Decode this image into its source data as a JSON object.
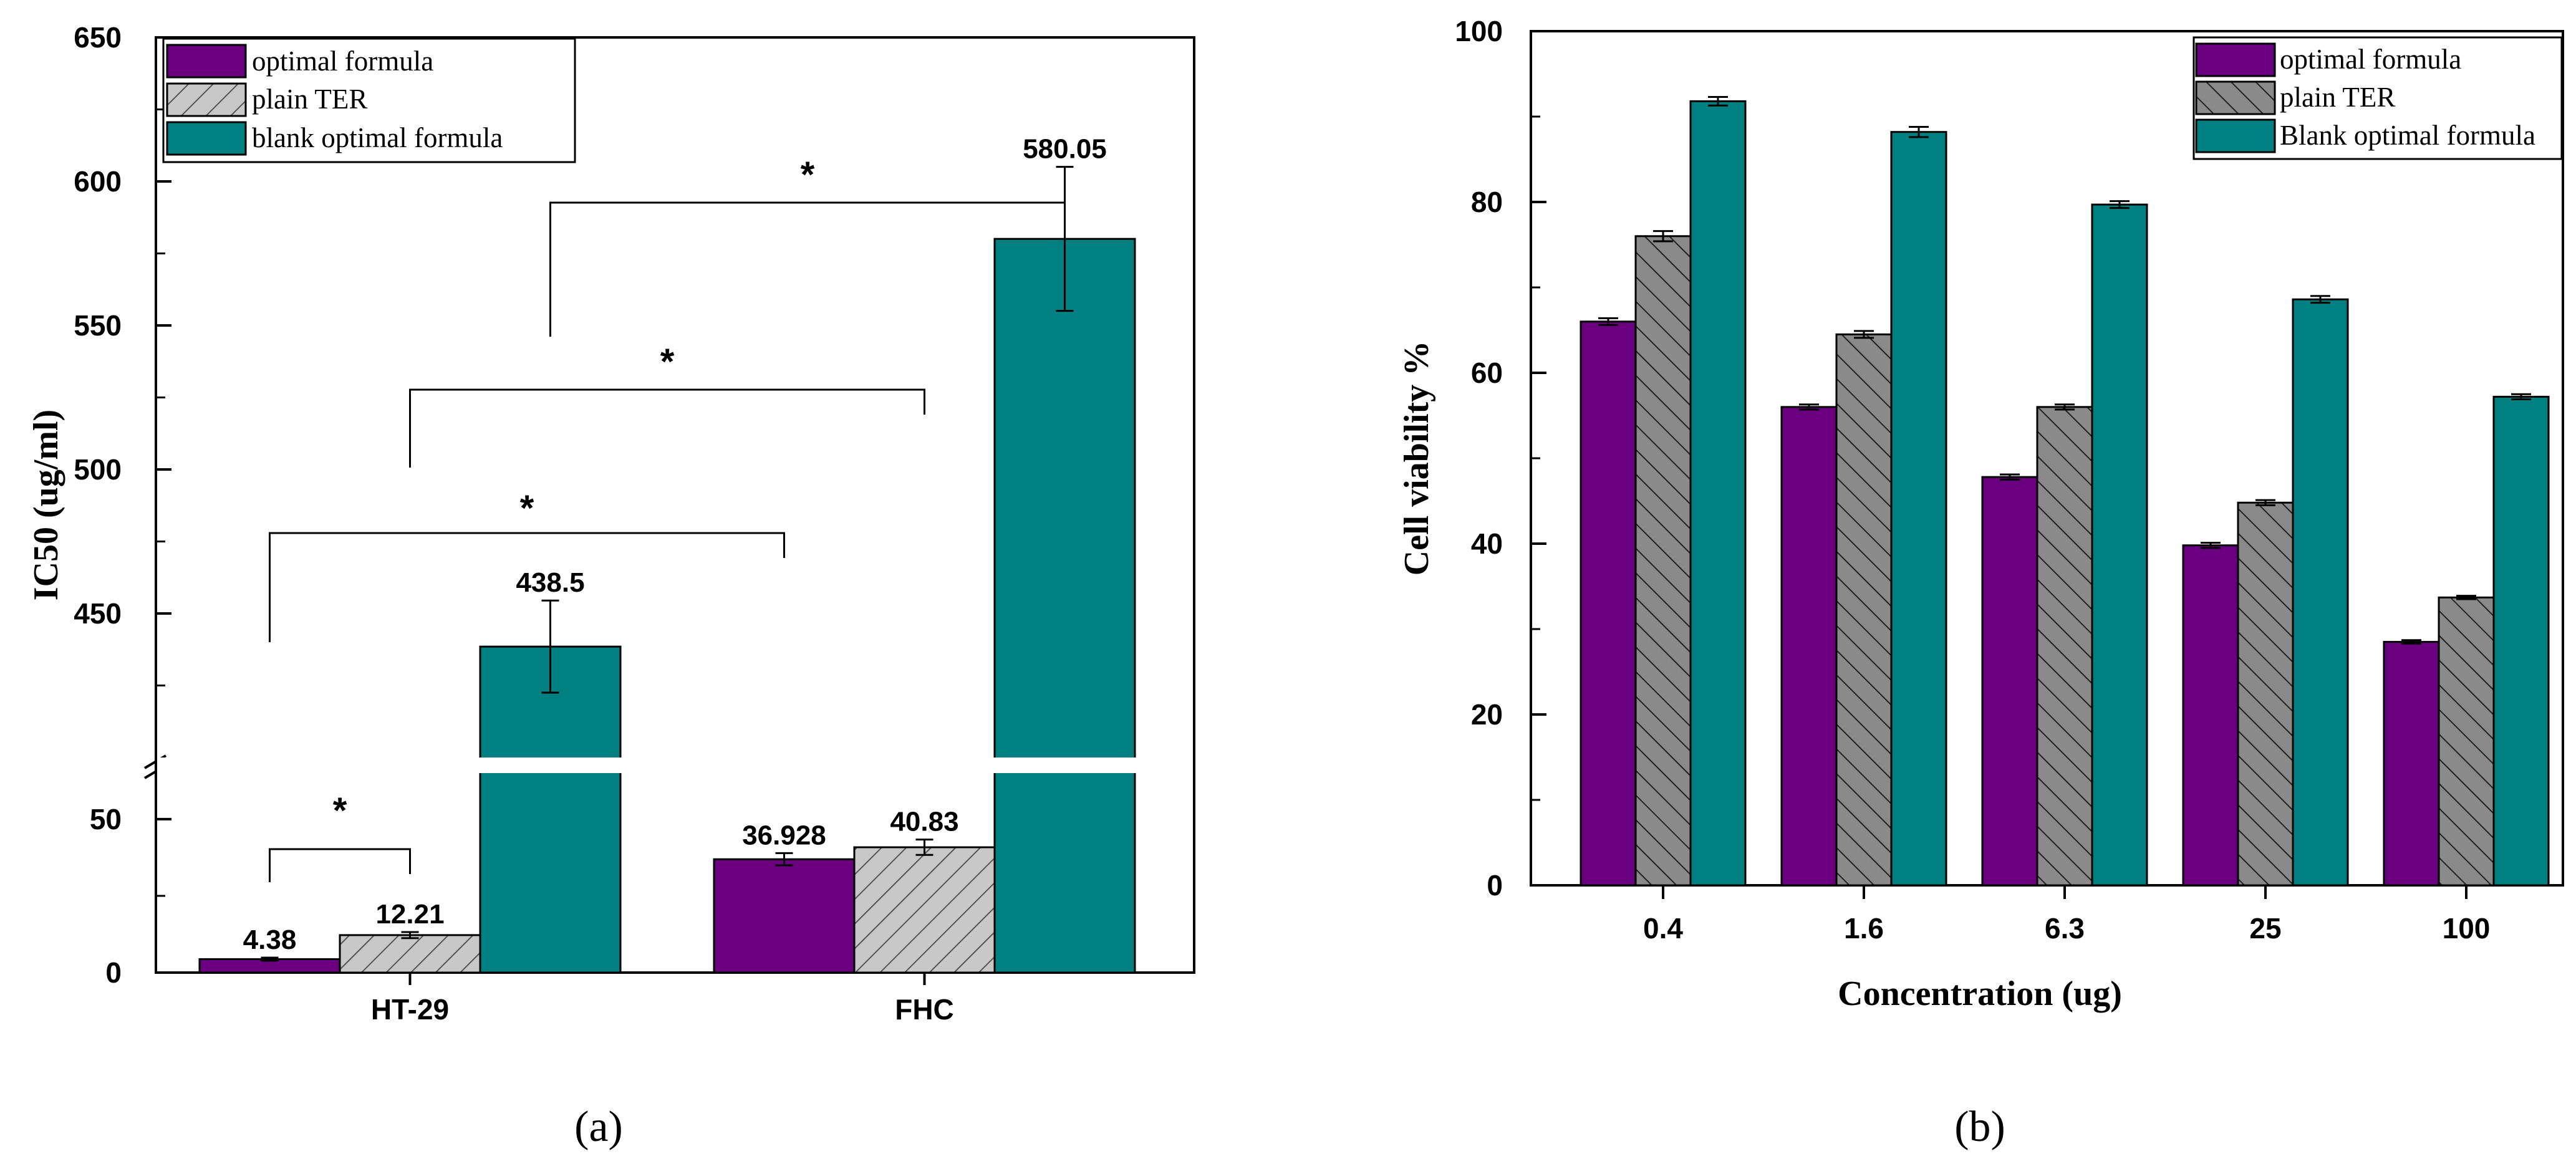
{
  "colors": {
    "optimal": "#6a0080",
    "plain_fill": "#c8c8c8",
    "plain_fill_dark": "#8a8a8a",
    "blank": "#008080"
  },
  "chart_data": [
    {
      "panel": "(a)",
      "type": "bar",
      "ylabel": "IC50 (ug/ml)",
      "xlabel": "",
      "categories": [
        "HT-29",
        "FHC"
      ],
      "series": [
        {
          "name": "optimal formula",
          "values": [
            4.38,
            36.928
          ],
          "errors": [
            0.5,
            2.0
          ],
          "labels": [
            "4.38",
            "36.928"
          ]
        },
        {
          "name": "plain TER",
          "values": [
            12.21,
            40.83
          ],
          "errors": [
            1.0,
            2.5
          ],
          "labels": [
            "12.21",
            "40.83"
          ]
        },
        {
          "name": "blank optimal formula",
          "values": [
            438.5,
            580.05
          ],
          "errors": [
            16,
            25
          ],
          "labels": [
            "438.5",
            "580.05"
          ]
        }
      ],
      "axis_break": {
        "lower": [
          0,
          65
        ],
        "upper": [
          400,
          650
        ]
      },
      "yticks_lower": [
        "0",
        "50"
      ],
      "yticks_upper": [
        "450",
        "500",
        "550",
        "600",
        "650"
      ],
      "significance": [
        {
          "label": "*",
          "from": "HT-29 optimal formula",
          "to": "HT-29 plain TER"
        },
        {
          "label": "*",
          "from": "HT-29 optimal formula",
          "to": "FHC optimal formula"
        },
        {
          "label": "*",
          "from": "HT-29 plain TER",
          "to": "FHC plain TER"
        },
        {
          "label": "*",
          "from": "HT-29 blank optimal formula",
          "to": "FHC blank optimal formula"
        }
      ],
      "legend_position": "top-left"
    },
    {
      "panel": "(b)",
      "type": "bar",
      "ylabel": "Cell viability %",
      "xlabel": "Concentration (ug)",
      "categories": [
        "0.4",
        "1.6",
        "6.3",
        "25",
        "100"
      ],
      "series": [
        {
          "name": "optimal formula",
          "values": [
            66,
            56,
            47.8,
            39.8,
            28.5
          ],
          "errors": [
            0.4,
            0.3,
            0.3,
            0.3,
            0.2
          ]
        },
        {
          "name": "plain TER",
          "values": [
            76,
            64.5,
            56,
            44.8,
            33.7
          ],
          "errors": [
            0.6,
            0.4,
            0.3,
            0.3,
            0.2
          ]
        },
        {
          "name": "Blank optimal formula",
          "values": [
            91.8,
            88.2,
            79.7,
            68.6,
            57.2
          ],
          "errors": [
            0.5,
            0.6,
            0.4,
            0.4,
            0.3
          ]
        }
      ],
      "ylim": [
        0,
        100
      ],
      "yticks": [
        "0",
        "20",
        "40",
        "60",
        "80",
        "100"
      ],
      "legend_position": "top-right"
    }
  ]
}
